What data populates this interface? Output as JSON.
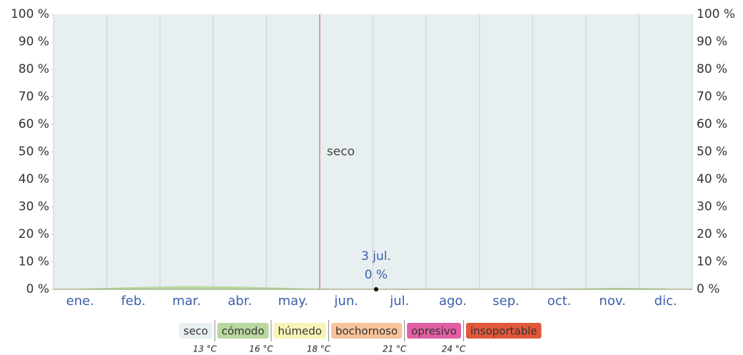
{
  "chart_data": {
    "type": "stacked_area",
    "categories": [
      "ene.",
      "feb.",
      "mar.",
      "abr.",
      "may.",
      "jun.",
      "jul.",
      "ago.",
      "sep.",
      "oct.",
      "nov.",
      "dic."
    ],
    "series": [
      {
        "name": "seco",
        "color": "#e8eff1",
        "values": [
          99.7,
          99.2,
          98.8,
          99,
          99.5,
          100,
          100,
          100,
          100,
          99.8,
          99.4,
          99.6
        ]
      },
      {
        "name": "cómodo",
        "color": "#b9d89f",
        "values": [
          0.3,
          0.8,
          1.2,
          1,
          0.5,
          0,
          0,
          0,
          0,
          0.2,
          0.6,
          0.4
        ]
      },
      {
        "name": "húmedo",
        "color": "#f8f4b8",
        "values": [
          0,
          0,
          0,
          0,
          0,
          0,
          0,
          0,
          0,
          0,
          0,
          0
        ]
      },
      {
        "name": "bochornoso",
        "color": "#f6c49c",
        "values": [
          0,
          0,
          0,
          0,
          0,
          0,
          0,
          0,
          0,
          0,
          0,
          0
        ]
      },
      {
        "name": "opresivo",
        "color": "#e35fa3",
        "values": [
          0,
          0,
          0,
          0,
          0,
          0,
          0,
          0,
          0,
          0,
          0,
          0
        ]
      },
      {
        "name": "insoportable",
        "color": "#e1583a",
        "values": [
          0,
          0,
          0,
          0,
          0,
          0,
          0,
          0,
          0,
          0,
          0,
          0
        ]
      }
    ],
    "thresholds": [
      {
        "value": 13,
        "label": "13 °C"
      },
      {
        "value": 16,
        "label": "16 °C"
      },
      {
        "value": 18,
        "label": "18 °C"
      },
      {
        "value": 21,
        "label": "21 °C"
      },
      {
        "value": 24,
        "label": "24 °C"
      }
    ],
    "ylim": [
      0,
      100
    ],
    "yticks": [
      {
        "value": 0,
        "label": "0 %"
      },
      {
        "value": 10,
        "label": "10 %"
      },
      {
        "value": 20,
        "label": "20 %"
      },
      {
        "value": 30,
        "label": "30 %"
      },
      {
        "value": 40,
        "label": "40 %"
      },
      {
        "value": 50,
        "label": "50 %"
      },
      {
        "value": 60,
        "label": "60 %"
      },
      {
        "value": 70,
        "label": "70 %"
      },
      {
        "value": 80,
        "label": "80 %"
      },
      {
        "value": 90,
        "label": "90 %"
      },
      {
        "value": 100,
        "label": "100 %"
      }
    ],
    "annotations": [
      {
        "text": "seco",
        "x": 5,
        "color": "#e87c7c"
      },
      {
        "text": "3 jul.",
        "x": 6.06,
        "y": 0,
        "value_label": "0 %"
      }
    ]
  }
}
